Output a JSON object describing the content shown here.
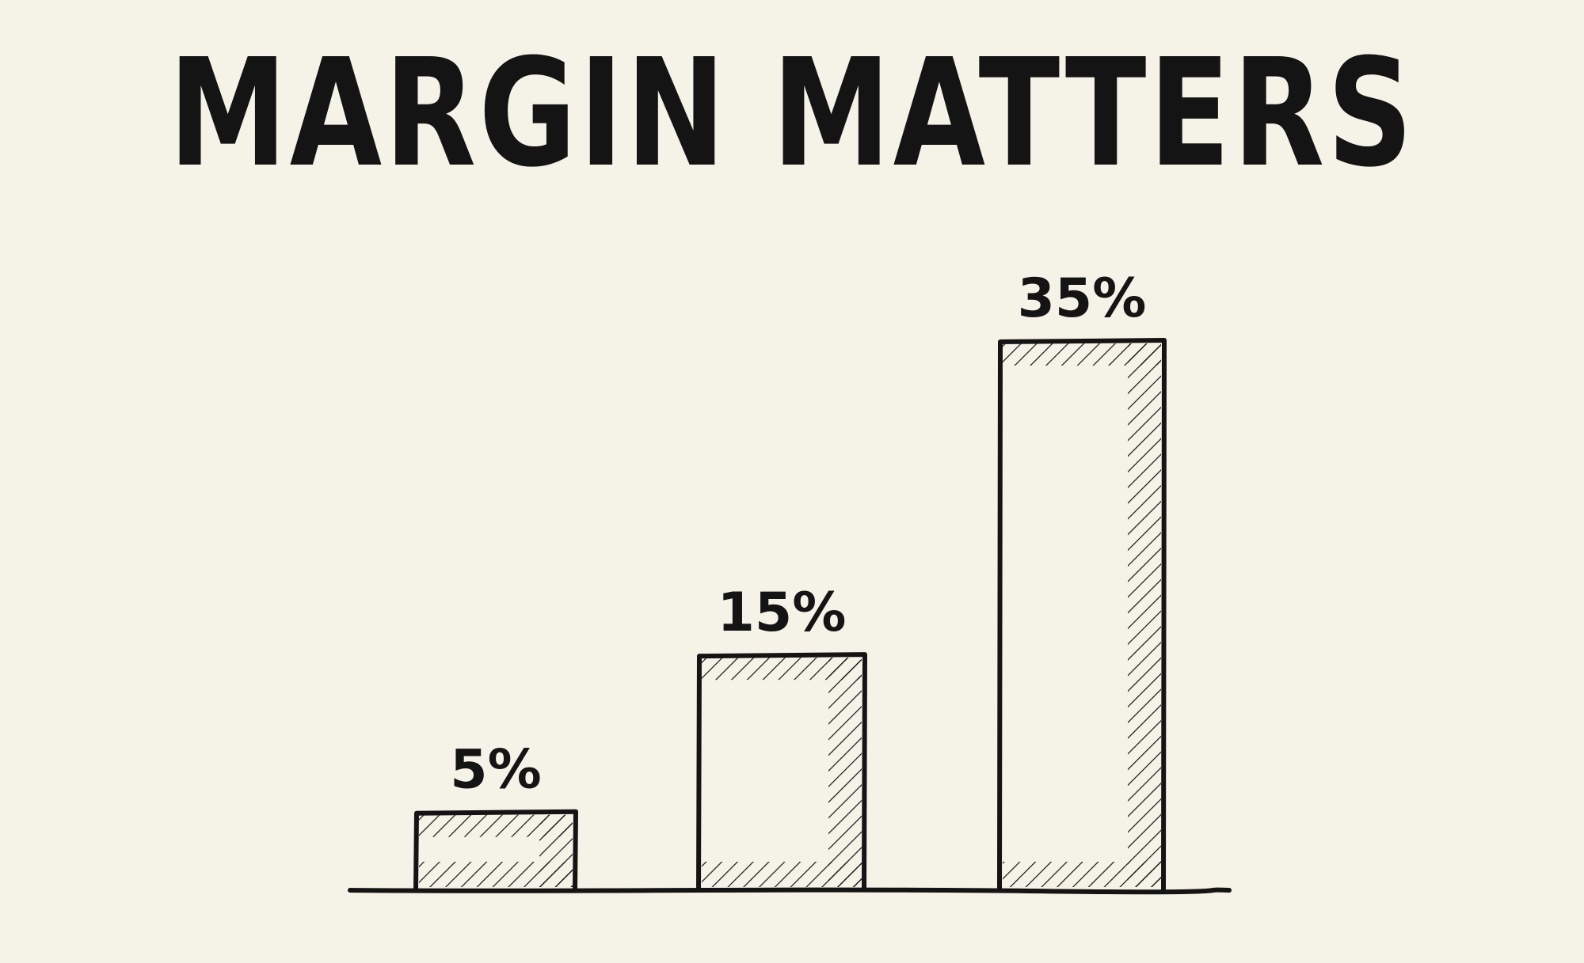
{
  "chart_data": {
    "type": "bar",
    "title": "MARGIN MATTERS",
    "categories": [
      "",
      "",
      ""
    ],
    "values": [
      5,
      15,
      35
    ],
    "value_labels": [
      "5%",
      "15%",
      "35%"
    ],
    "ylim": [
      0,
      40
    ],
    "grid": false,
    "legend": "none"
  },
  "colors": {
    "paper": "#f5f2e7",
    "ink": "#141414"
  }
}
